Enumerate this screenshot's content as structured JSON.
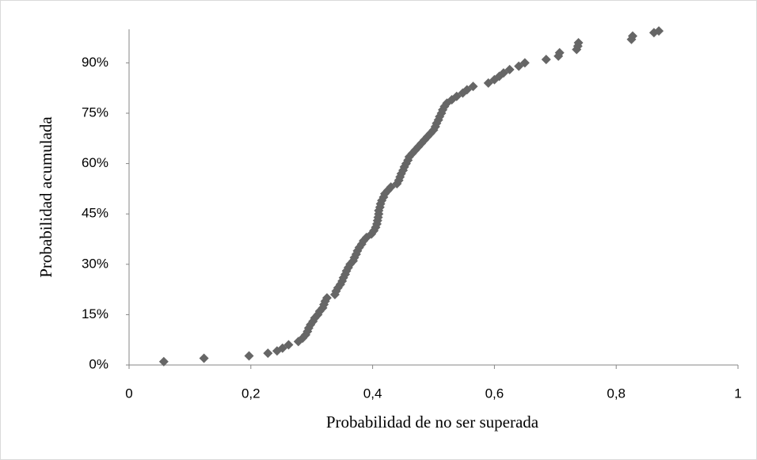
{
  "chart_data": {
    "type": "scatter",
    "xlabel": "Probabilidad de no ser superada",
    "ylabel": "Probabilidad acumulada",
    "color": "#666666",
    "grid": false,
    "xlim": [
      0,
      1
    ],
    "xticks": [
      0,
      {
        "value": 0.2,
        "label": "0,2"
      },
      {
        "value": 0.4,
        "label": "0,4"
      },
      {
        "value": 0.6,
        "label": "0,6"
      },
      {
        "value": 0.8,
        "label": "0,8"
      },
      1
    ],
    "ylim": [
      0,
      100
    ],
    "yticks": [
      {
        "value": 0,
        "label": "0%"
      },
      {
        "value": 15,
        "label": "15%"
      },
      {
        "value": 30,
        "label": "30%"
      },
      {
        "value": 45,
        "label": "45%"
      },
      {
        "value": 60,
        "label": "60%"
      },
      {
        "value": 75,
        "label": "75%"
      },
      {
        "value": 90,
        "label": "90%"
      }
    ],
    "x": [
      0.057,
      0.123,
      0.197,
      0.228,
      0.243,
      0.252,
      0.262,
      0.278,
      0.285,
      0.29,
      0.293,
      0.295,
      0.298,
      0.302,
      0.305,
      0.31,
      0.313,
      0.318,
      0.32,
      0.322,
      0.325,
      0.338,
      0.34,
      0.343,
      0.347,
      0.35,
      0.352,
      0.355,
      0.357,
      0.36,
      0.363,
      0.368,
      0.37,
      0.373,
      0.375,
      0.378,
      0.382,
      0.385,
      0.39,
      0.398,
      0.402,
      0.405,
      0.407,
      0.408,
      0.409,
      0.41,
      0.41,
      0.412,
      0.413,
      0.415,
      0.418,
      0.42,
      0.425,
      0.43,
      0.44,
      0.443,
      0.445,
      0.447,
      0.45,
      0.452,
      0.455,
      0.458,
      0.46,
      0.465,
      0.47,
      0.475,
      0.48,
      0.485,
      0.49,
      0.495,
      0.5,
      0.503,
      0.505,
      0.508,
      0.51,
      0.513,
      0.515,
      0.518,
      0.522,
      0.53,
      0.538,
      0.548,
      0.555,
      0.565,
      0.59,
      0.6,
      0.608,
      0.615,
      0.625,
      0.64,
      0.65,
      0.685,
      0.705,
      0.707,
      0.735,
      0.737,
      0.738,
      0.825,
      0.827,
      0.862,
      0.87
    ],
    "values": [
      1,
      2,
      2.7,
      3.5,
      4.2,
      5,
      6,
      7,
      8,
      9,
      10,
      11,
      12,
      13,
      14,
      15,
      16,
      17,
      18,
      19,
      20,
      21,
      22,
      23,
      24,
      25,
      26,
      27,
      28,
      29,
      30,
      31,
      32,
      33,
      34,
      35,
      36,
      37,
      38,
      39,
      40,
      41,
      42,
      43,
      44,
      45,
      46,
      47,
      48,
      49,
      50,
      51,
      52,
      53,
      54,
      55,
      56,
      57,
      58,
      59,
      60,
      61,
      62,
      63,
      64,
      65,
      66,
      67,
      68,
      69,
      70,
      71,
      72,
      73,
      74,
      75,
      76,
      77,
      78,
      79,
      80,
      81,
      82,
      83,
      84,
      85,
      86,
      87,
      88,
      89,
      90,
      91,
      92,
      93,
      94,
      95,
      96,
      97,
      98,
      99,
      99.5
    ]
  }
}
